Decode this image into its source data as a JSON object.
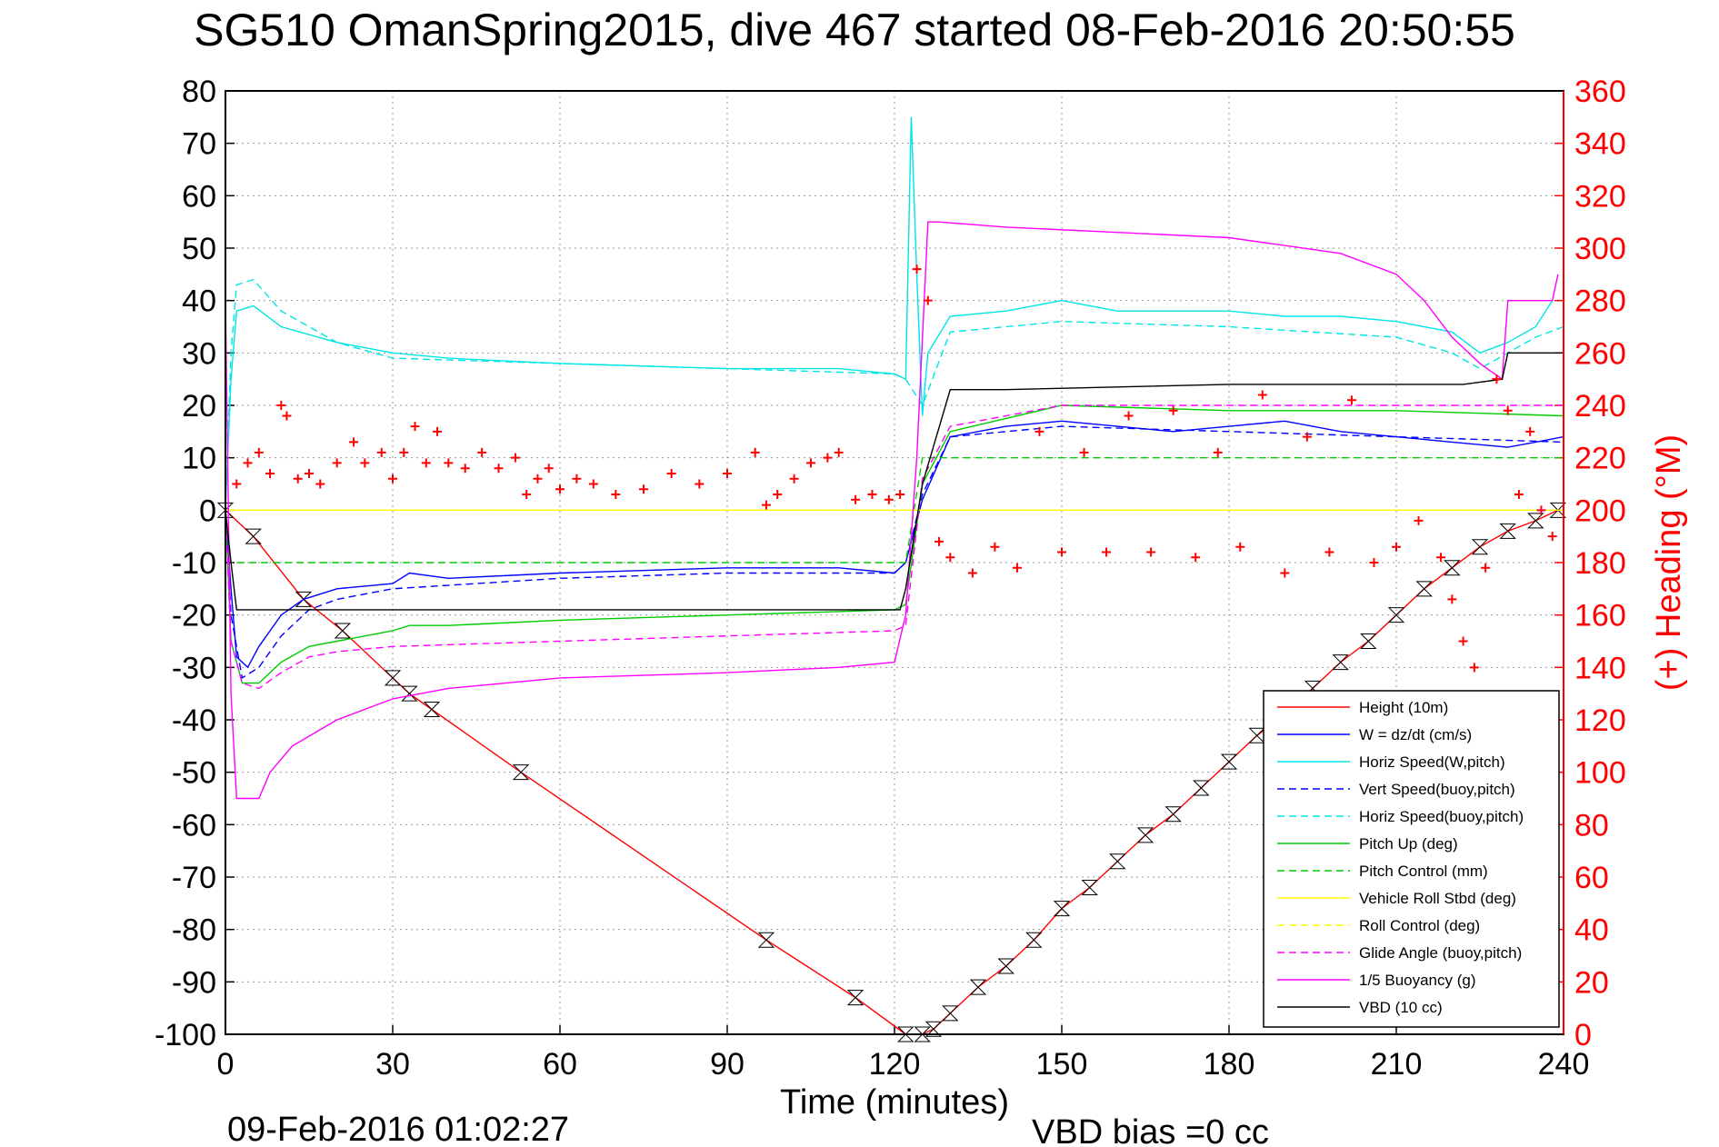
{
  "chart_data": {
    "type": "line",
    "title": "SG510 OmanSpring2015, dive 467 started 08-Feb-2016 20:50:55",
    "xlabel": "Time (minutes)",
    "ylabel": "",
    "ylabel_right": "(+) Heading (°M)",
    "xlim": [
      0,
      240
    ],
    "ylim": [
      -100,
      80
    ],
    "ylim_right": [
      0,
      360
    ],
    "x_ticks": [
      0,
      30,
      60,
      90,
      120,
      150,
      180,
      210,
      240
    ],
    "y_ticks": [
      80,
      70,
      60,
      50,
      40,
      30,
      20,
      10,
      0,
      -10,
      -20,
      -30,
      -40,
      -50,
      -60,
      -70,
      -80,
      -90,
      -100
    ],
    "y_ticks_right": [
      360,
      340,
      320,
      300,
      280,
      260,
      240,
      220,
      200,
      180,
      160,
      140,
      120,
      100,
      80,
      60,
      40,
      20,
      0
    ],
    "grid": true,
    "legend_position": "bottom-right",
    "footer_left": "09-Feb-2016 01:02:27",
    "footer_right": "VBD bias =0 cc",
    "colors": {
      "height": "#ff0000",
      "w": "#0000ff",
      "horiz": "#00e5e5",
      "pitch": "#00cc00",
      "roll": "#ffff00",
      "glide": "#ff00ff",
      "buoy": "#ff00ff",
      "vbd": "#000000",
      "right_axis": "#ff0000"
    },
    "series": [
      {
        "name": "Height (10m)",
        "style": "solid",
        "color": "#ff0000",
        "x": [
          0,
          5,
          14,
          21,
          30,
          33,
          37,
          53,
          97,
          113,
          122,
          125,
          127,
          130,
          135,
          140,
          145,
          150,
          155,
          160,
          165,
          170,
          175,
          180,
          185,
          190,
          195,
          200,
          205,
          210,
          215,
          220,
          225,
          230,
          235,
          239
        ],
        "y": [
          0,
          -5,
          -17,
          -23,
          -32,
          -35,
          -38,
          -50,
          -82,
          -93,
          -100,
          -100,
          -99,
          -96,
          -91,
          -87,
          -82,
          -76,
          -72,
          -67,
          -62,
          -58,
          -53,
          -48,
          -43,
          -39,
          -34,
          -29,
          -25,
          -20,
          -15,
          -11,
          -7,
          -4,
          -2,
          0
        ]
      },
      {
        "name": "W = dz/dt (cm/s)",
        "style": "solid",
        "color": "#0000ff",
        "x": [
          0,
          1,
          2,
          4,
          6,
          8,
          10,
          14,
          20,
          30,
          33,
          40,
          60,
          90,
          110,
          120,
          122,
          125,
          130,
          140,
          150,
          160,
          170,
          180,
          190,
          200,
          210,
          220,
          230,
          235,
          240
        ],
        "y": [
          0,
          -15,
          -28,
          -30,
          -26,
          -23,
          -20,
          -17,
          -15,
          -14,
          -12,
          -13,
          -12,
          -11,
          -11,
          -12,
          -10,
          2,
          14,
          16,
          17,
          16,
          15,
          16,
          17,
          15,
          14,
          13,
          12,
          13,
          14
        ]
      },
      {
        "name": "Horiz Speed(W,pitch)",
        "style": "solid",
        "color": "#00e5e5",
        "x": [
          0,
          1,
          2,
          5,
          10,
          20,
          30,
          40,
          60,
          90,
          110,
          120,
          122,
          123,
          124,
          125,
          126,
          130,
          140,
          150,
          160,
          170,
          180,
          190,
          200,
          210,
          220,
          225,
          230,
          235,
          238
        ],
        "y": [
          0,
          25,
          38,
          39,
          35,
          32,
          30,
          29,
          28,
          27,
          27,
          26,
          25,
          75,
          45,
          18,
          30,
          37,
          38,
          40,
          38,
          38,
          38,
          37,
          37,
          36,
          34,
          30,
          32,
          35,
          40
        ]
      },
      {
        "name": "Vert Speed(buoy,pitch)",
        "style": "dashed",
        "color": "#0000ff",
        "x": [
          0,
          1,
          3,
          6,
          10,
          15,
          20,
          30,
          60,
          90,
          120,
          122,
          125,
          130,
          150,
          180,
          210,
          240
        ],
        "y": [
          0,
          -20,
          -32,
          -30,
          -24,
          -19,
          -17,
          -15,
          -13,
          -12,
          -12,
          -10,
          3,
          14,
          16,
          15,
          14,
          13
        ]
      },
      {
        "name": "Horiz Speed(buoy,pitch)",
        "style": "dashed",
        "color": "#00e5e5",
        "x": [
          0,
          1,
          2,
          5,
          10,
          20,
          30,
          60,
          90,
          120,
          122,
          125,
          130,
          150,
          180,
          210,
          220,
          225,
          230,
          235,
          240
        ],
        "y": [
          0,
          30,
          43,
          44,
          38,
          32,
          29,
          28,
          27,
          26,
          25,
          20,
          34,
          36,
          35,
          33,
          30,
          27,
          30,
          33,
          35
        ]
      },
      {
        "name": "Pitch Up (deg)",
        "style": "solid",
        "color": "#00cc00",
        "x": [
          0,
          1,
          3,
          6,
          10,
          15,
          20,
          30,
          33,
          40,
          60,
          90,
          120,
          122,
          125,
          130,
          150,
          180,
          210,
          240
        ],
        "y": [
          0,
          -25,
          -33,
          -33,
          -29,
          -26,
          -25,
          -23,
          -22,
          -22,
          -21,
          -20,
          -19,
          -18,
          5,
          15,
          20,
          19,
          19,
          18
        ]
      },
      {
        "name": "Pitch Control (mm)",
        "style": "dashed",
        "color": "#00cc00",
        "x": [
          0,
          1,
          5,
          30,
          60,
          90,
          120,
          122,
          125,
          130,
          150,
          180,
          210,
          240
        ],
        "y": [
          0,
          -10,
          -10,
          -10,
          -10,
          -10,
          -10,
          -10,
          10,
          10,
          10,
          10,
          10,
          10
        ]
      },
      {
        "name": "Vehicle Roll Stbd (deg)",
        "style": "solid",
        "color": "#ffff00",
        "x": [
          0,
          30,
          60,
          90,
          120,
          125,
          130,
          150,
          180,
          210,
          240
        ],
        "y": [
          0,
          0,
          0,
          0,
          0,
          0,
          0,
          0,
          0,
          0,
          0
        ]
      },
      {
        "name": "Roll Control (deg)",
        "style": "dashed",
        "color": "#ffff00",
        "x": [
          0,
          30,
          60,
          90,
          120,
          125,
          130,
          150,
          180,
          210,
          240
        ],
        "y": [
          0,
          0,
          0,
          0,
          0,
          0,
          0,
          0,
          0,
          0,
          0
        ]
      },
      {
        "name": "Glide Angle (buoy,pitch)",
        "style": "dashed",
        "color": "#ff00ff",
        "x": [
          0,
          1,
          3,
          6,
          10,
          15,
          20,
          30,
          60,
          90,
          120,
          122,
          125,
          130,
          150,
          180,
          210,
          240
        ],
        "y": [
          0,
          -25,
          -33,
          -34,
          -31,
          -28,
          -27,
          -26,
          -25,
          -24,
          -23,
          -22,
          6,
          16,
          20,
          20,
          20,
          20
        ]
      },
      {
        "name": "1/5 Buoyancy (g)",
        "style": "solid",
        "color": "#ff00ff",
        "x": [
          0,
          1,
          2,
          6,
          8,
          12,
          20,
          30,
          40,
          60,
          90,
          110,
          120,
          122,
          124,
          126,
          128,
          140,
          160,
          180,
          200,
          210,
          215,
          220,
          225,
          229,
          230,
          238,
          239
        ],
        "y": [
          40,
          -35,
          -55,
          -55,
          -50,
          -45,
          -40,
          -36,
          -34,
          -32,
          -31,
          -30,
          -29,
          -20,
          10,
          55,
          55,
          54,
          53,
          52,
          49,
          45,
          40,
          33,
          28,
          25,
          40,
          40,
          45
        ]
      },
      {
        "name": "VBD (10 cc)",
        "style": "solid",
        "color": "#000000",
        "x": [
          0,
          1,
          2,
          60,
          110,
          121,
          122,
          125,
          130,
          140,
          180,
          220,
          222,
          229,
          230,
          240
        ],
        "y": [
          0,
          -10,
          -19,
          -19,
          -19,
          -19,
          -15,
          5,
          23,
          23,
          24,
          24,
          24,
          25,
          30,
          30
        ]
      },
      {
        "name": "(+) Heading (°M)",
        "style": "plus",
        "color": "#ff0000",
        "axis": "right",
        "x": [
          2,
          4,
          6,
          8,
          10,
          11,
          13,
          15,
          17,
          20,
          23,
          25,
          28,
          30,
          32,
          34,
          36,
          38,
          40,
          43,
          46,
          49,
          52,
          54,
          56,
          58,
          60,
          63,
          66,
          70,
          75,
          80,
          85,
          90,
          95,
          97,
          99,
          102,
          105,
          108,
          110,
          113,
          116,
          119,
          121,
          124,
          126,
          128,
          130,
          134,
          138,
          142,
          146,
          150,
          154,
          158,
          162,
          166,
          170,
          174,
          178,
          182,
          186,
          190,
          194,
          198,
          202,
          206,
          210,
          214,
          218,
          220,
          222,
          224,
          226,
          228,
          230,
          232,
          234,
          236,
          238
        ],
        "y": [
          210,
          218,
          222,
          214,
          240,
          236,
          212,
          214,
          210,
          218,
          226,
          218,
          222,
          212,
          222,
          232,
          218,
          230,
          218,
          216,
          222,
          216,
          220,
          206,
          212,
          216,
          208,
          212,
          210,
          206,
          208,
          214,
          210,
          214,
          222,
          202,
          206,
          212,
          218,
          220,
          222,
          204,
          206,
          204,
          206,
          292,
          280,
          188,
          182,
          176,
          186,
          178,
          230,
          184,
          222,
          184,
          236,
          184,
          238,
          182,
          222,
          186,
          244,
          176,
          228,
          184,
          242,
          180,
          186,
          196,
          182,
          166,
          150,
          140,
          178,
          250,
          238,
          206,
          230,
          200,
          190
        ]
      }
    ]
  }
}
